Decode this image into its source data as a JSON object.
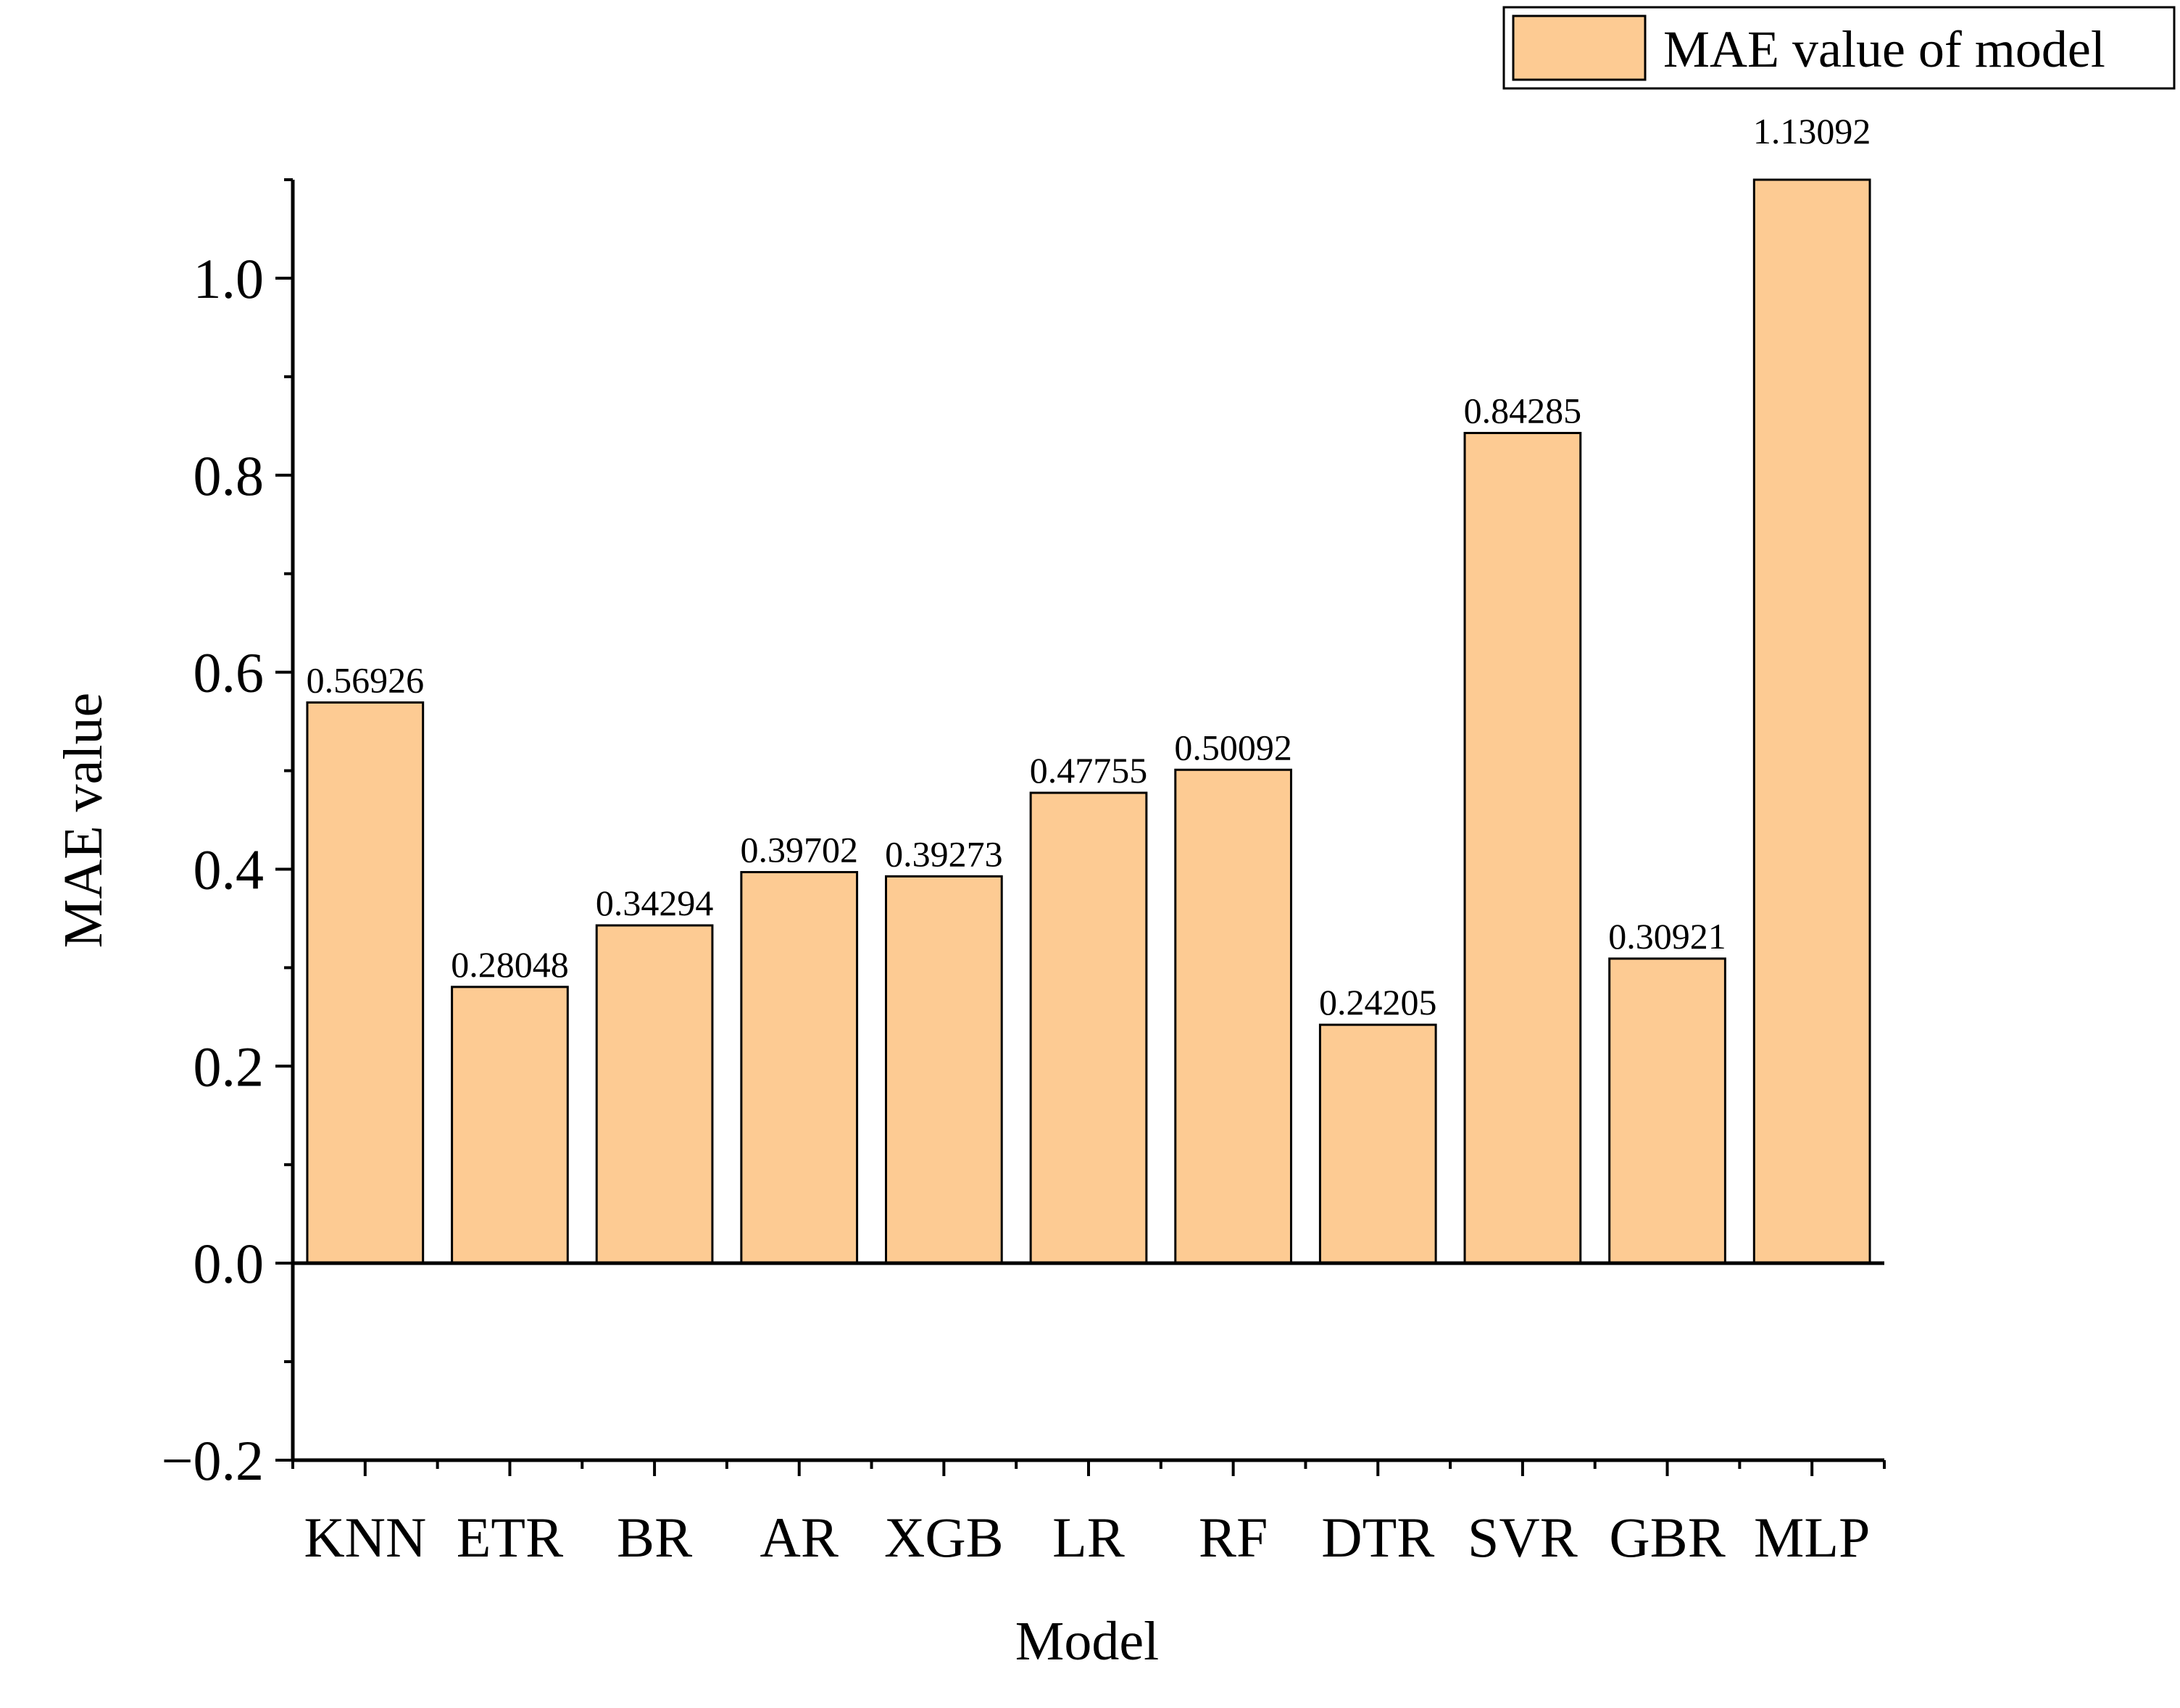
{
  "chart_data": {
    "type": "bar",
    "title": "",
    "xlabel": "Model",
    "ylabel": "MAE value",
    "categories": [
      "KNN",
      "ETR",
      "BR",
      "AR",
      "XGB",
      "LR",
      "RF",
      "DTR",
      "SVR",
      "GBR",
      "MLP"
    ],
    "series": [
      {
        "name": "MAE value of model",
        "values": [
          0.56926,
          0.28048,
          0.34294,
          0.39702,
          0.39273,
          0.47755,
          0.50092,
          0.24205,
          0.84285,
          0.30921,
          1.13092
        ]
      }
    ],
    "data_labels": [
      "0.56926",
      "0.28048",
      "0.34294",
      "0.39702",
      "0.39273",
      "0.47755",
      "0.50092",
      "0.24205",
      "0.84285",
      "0.30921",
      "1.13092"
    ],
    "ylim": [
      -0.2,
      1.1
    ],
    "yticks": [
      -0.2,
      0.0,
      0.2,
      0.4,
      0.6,
      0.8,
      1.0
    ],
    "ytick_labels": [
      "−0.2",
      "0.0",
      "0.2",
      "0.4",
      "0.6",
      "0.8",
      "1.0"
    ],
    "grid": false,
    "legend_position": "top-right",
    "bar_color": "#FDCB93",
    "edge_color": "#000000"
  }
}
